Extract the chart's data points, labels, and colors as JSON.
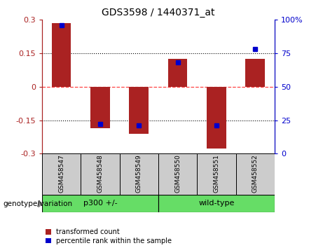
{
  "title": "GDS3598 / 1440371_at",
  "samples": [
    "GSM458547",
    "GSM458548",
    "GSM458549",
    "GSM458550",
    "GSM458551",
    "GSM458552"
  ],
  "red_values": [
    0.285,
    -0.185,
    -0.21,
    0.125,
    -0.275,
    0.125
  ],
  "blue_values": [
    96,
    22,
    21,
    68,
    21,
    78
  ],
  "group_label": "genotype/variation",
  "group1_label": "p300 +/-",
  "group1_range": [
    0,
    2
  ],
  "group2_label": "wild-type",
  "group2_range": [
    3,
    5
  ],
  "left_yticks": [
    -0.3,
    -0.15,
    0,
    0.15,
    0.3
  ],
  "right_yticks": [
    0,
    25,
    50,
    75,
    100
  ],
  "ylim_left": [
    -0.3,
    0.3
  ],
  "ylim_right": [
    0,
    100
  ],
  "red_color": "#AA2222",
  "blue_color": "#0000CC",
  "bar_width": 0.5,
  "legend_red": "transformed count",
  "legend_blue": "percentile rank within the sample",
  "sample_bg": "#CCCCCC",
  "green_color": "#66DD66",
  "zero_line_color": "#FF4444",
  "grid_color": "black"
}
